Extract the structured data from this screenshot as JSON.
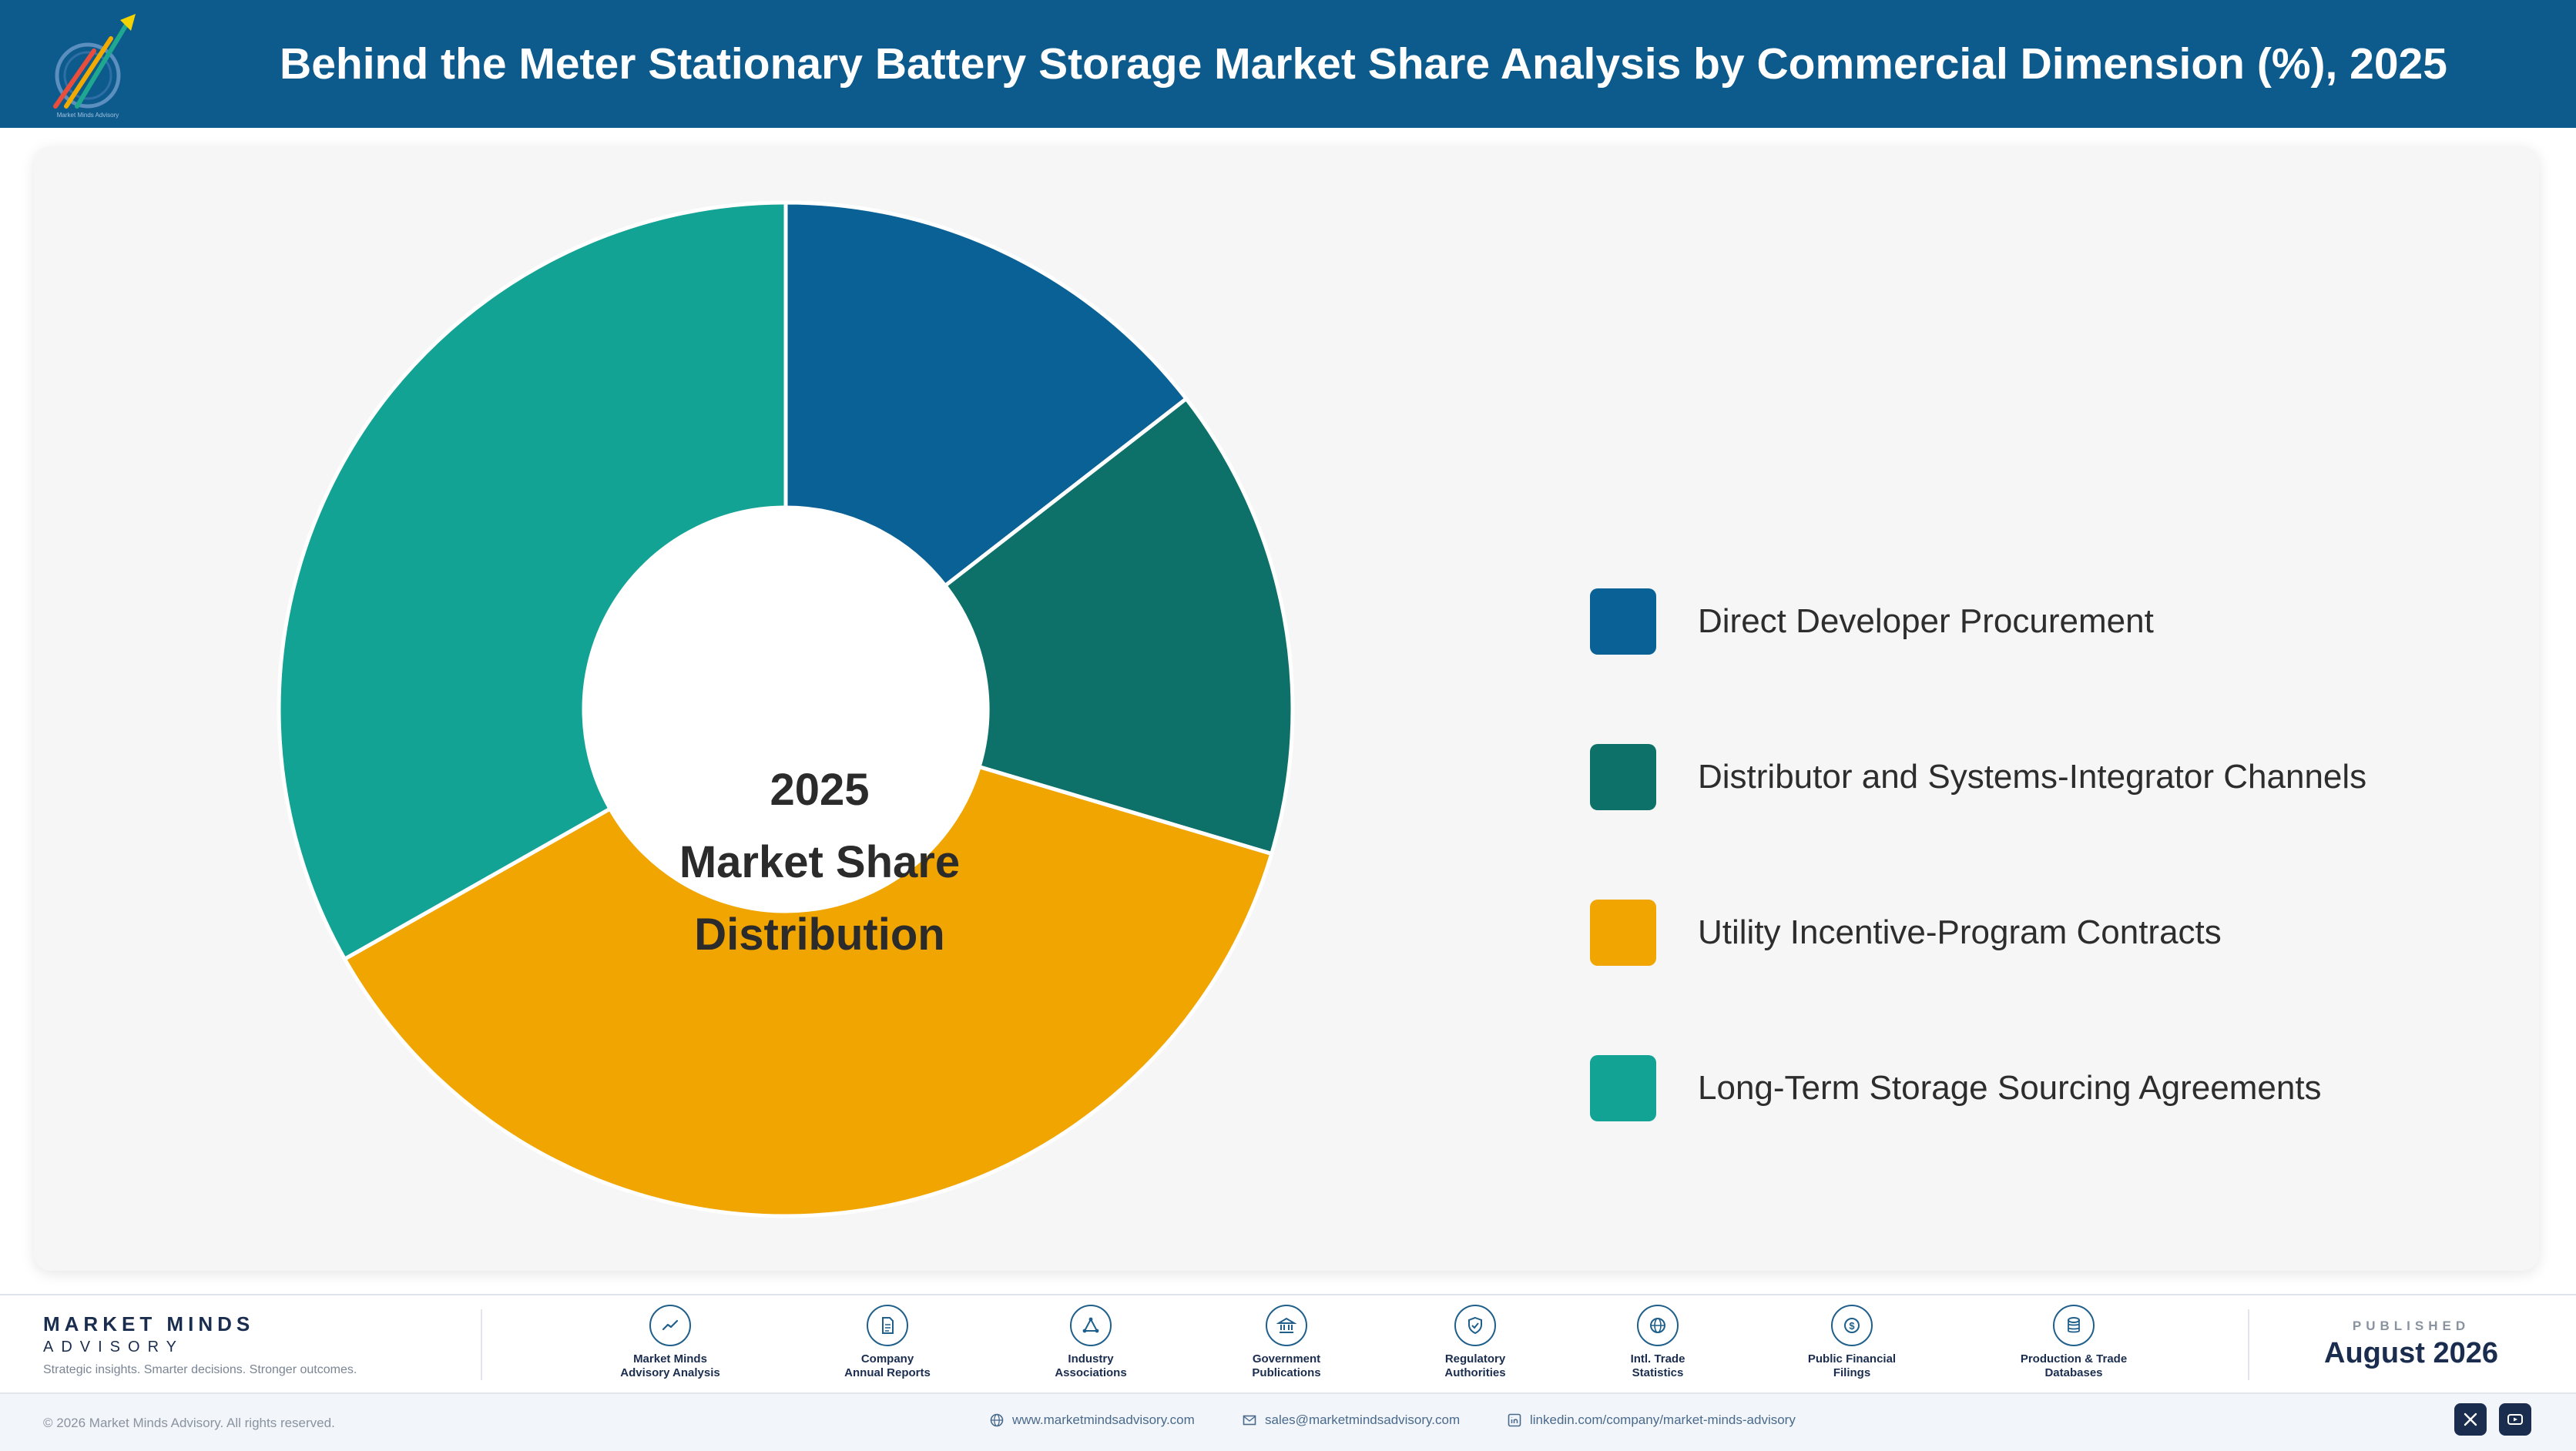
{
  "header": {
    "title": "Behind the Meter Stationary Battery Storage Market Share Analysis by Commercial Dimension (%), 2025",
    "logo_text": "Market Minds Advisory",
    "background": "#0d5a8c"
  },
  "chart_data": {
    "type": "pie",
    "variant": "donut",
    "center_text": [
      "2025",
      "Market Share",
      "Distribution"
    ],
    "categories": [
      "Direct Developer Procurement",
      "Distributor and Systems-Integrator Channels",
      "Utility Incentive-Program Contracts",
      "Long-Term Storage Sourcing Agreements"
    ],
    "values": [
      14.5,
      15.1,
      37.2,
      33.2
    ],
    "colors": [
      "#0a6196",
      "#0d7169",
      "#f0a500",
      "#12a394"
    ],
    "legend_position": "right"
  },
  "footer": {
    "brand_name": "MARKET MINDS",
    "brand_sub": "ADVISORY",
    "brand_tagline": "Strategic insights. Smarter decisions. Stronger outcomes.",
    "sources": [
      {
        "line1": "Market Minds",
        "line2": "Advisory Analysis",
        "icon": "chart-line-icon"
      },
      {
        "line1": "Company",
        "line2": "Annual Reports",
        "icon": "document-icon"
      },
      {
        "line1": "Industry",
        "line2": "Associations",
        "icon": "network-icon"
      },
      {
        "line1": "Government",
        "line2": "Publications",
        "icon": "bank-icon"
      },
      {
        "line1": "Regulatory",
        "line2": "Authorities",
        "icon": "shield-icon"
      },
      {
        "line1": "Intl. Trade",
        "line2": "Statistics",
        "icon": "globe-icon"
      },
      {
        "line1": "Public Financial",
        "line2": "Filings",
        "icon": "coin-icon"
      },
      {
        "line1": "Production & Trade",
        "line2": "Databases",
        "icon": "database-icon"
      }
    ],
    "published_label": "PUBLISHED",
    "published_date": "August 2026",
    "copyright": "© 2026 Market Minds Advisory. All rights reserved.",
    "website": "www.marketmindsadvisory.com",
    "email": "sales@marketmindsadvisory.com",
    "linkedin": "linkedin.com/company/market-minds-advisory"
  }
}
